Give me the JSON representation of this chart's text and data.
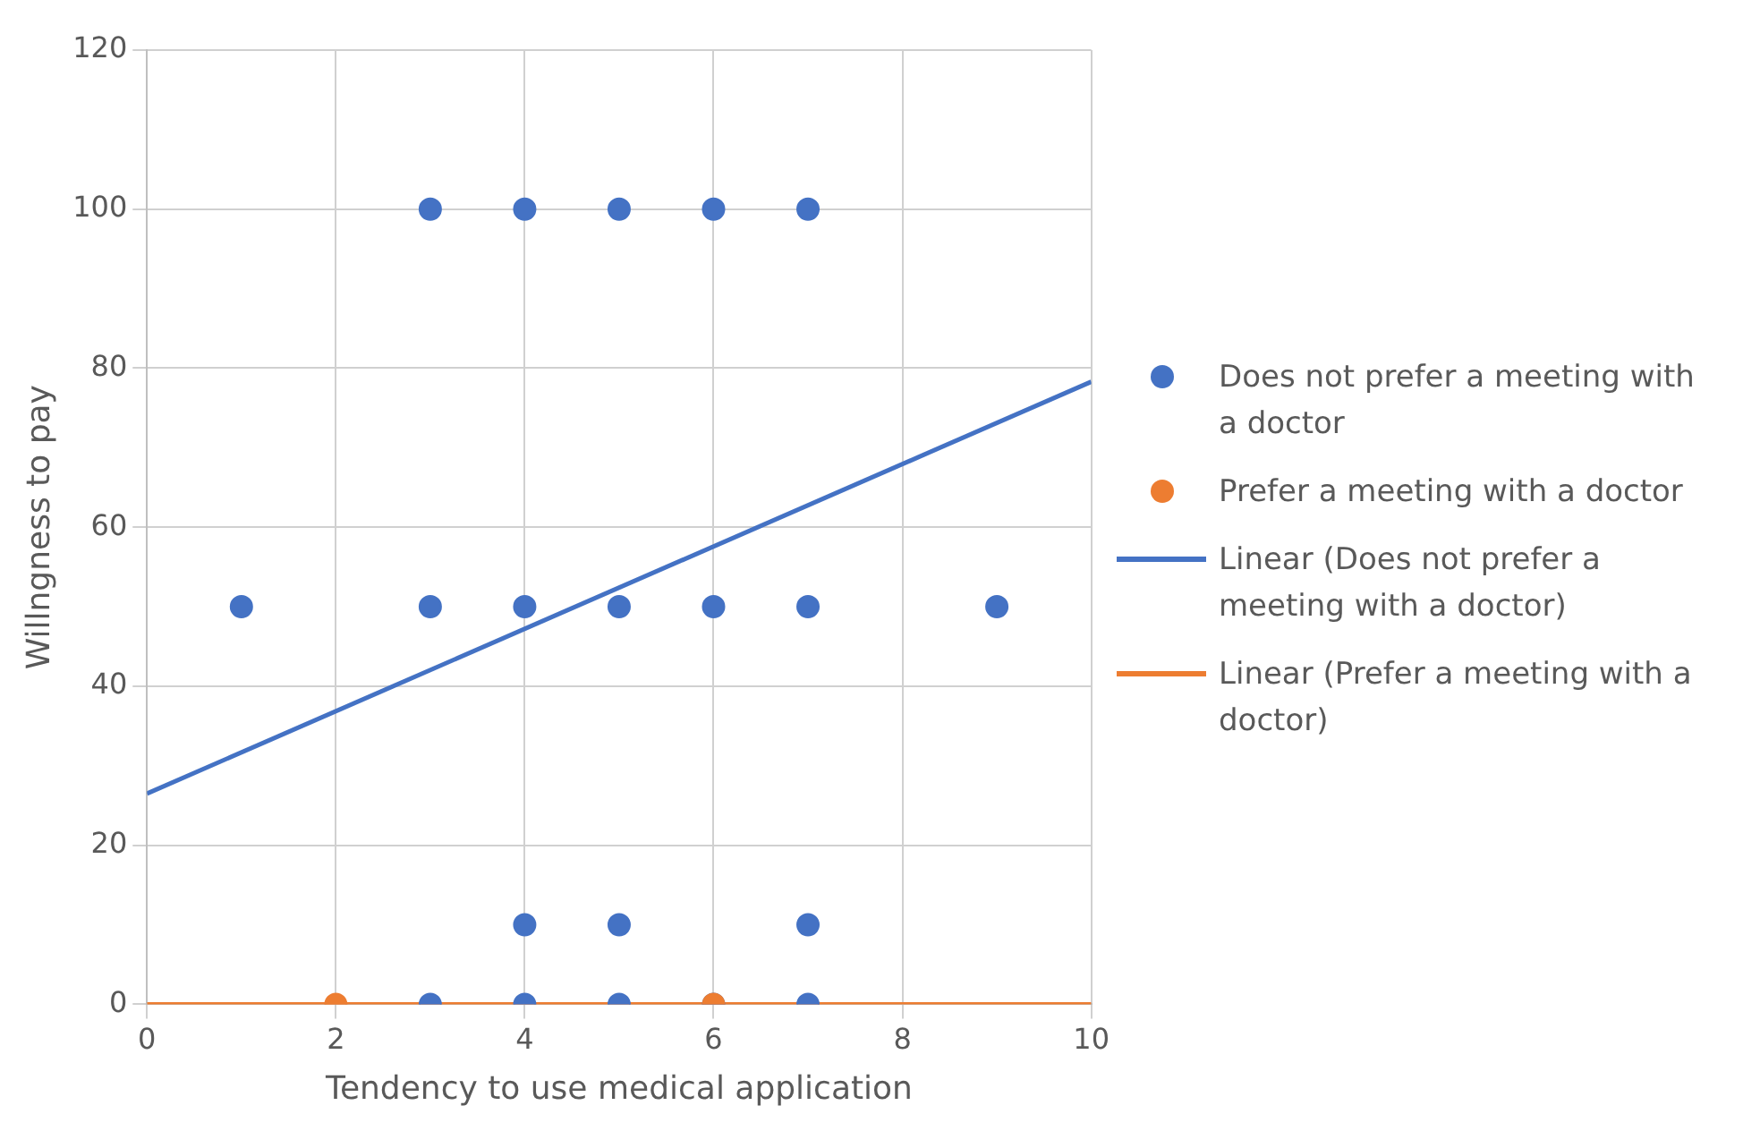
{
  "chart_data": {
    "type": "scatter",
    "xlabel": "Tendency to use medical application",
    "ylabel": "Willngness to pay",
    "xlim": [
      0,
      10
    ],
    "ylim": [
      0,
      120
    ],
    "xticks": [
      0,
      2,
      4,
      6,
      8,
      10
    ],
    "yticks": [
      0,
      20,
      40,
      60,
      80,
      100,
      120
    ],
    "grid": true,
    "legend": "right",
    "series": [
      {
        "name": "Does not prefer a meeting with a doctor",
        "color": "#4472c4",
        "marker": "circle",
        "x": [
          3,
          4,
          5,
          6,
          7,
          1,
          3,
          4,
          5,
          6,
          7,
          9,
          4,
          5,
          7,
          3,
          4,
          5,
          6,
          7
        ],
        "values": [
          100,
          100,
          100,
          100,
          100,
          50,
          50,
          50,
          50,
          50,
          50,
          50,
          10,
          10,
          10,
          0,
          0,
          0,
          0,
          0
        ]
      },
      {
        "name": "Prefer a meeting with a doctor",
        "color": "#ed7d31",
        "marker": "circle",
        "x": [
          2,
          6
        ],
        "values": [
          0,
          0
        ]
      },
      {
        "name": "Linear (Does not prefer a meeting with a doctor)",
        "type": "line",
        "marker": "none",
        "color": "#4472c4",
        "x": [
          0,
          10
        ],
        "values": [
          26.5,
          78.3
        ]
      },
      {
        "name": "Linear (Prefer a meeting with a doctor)",
        "type": "line",
        "marker": "none",
        "color": "#ed7d31",
        "x": [
          0,
          10
        ],
        "values": [
          0,
          0
        ]
      }
    ]
  }
}
